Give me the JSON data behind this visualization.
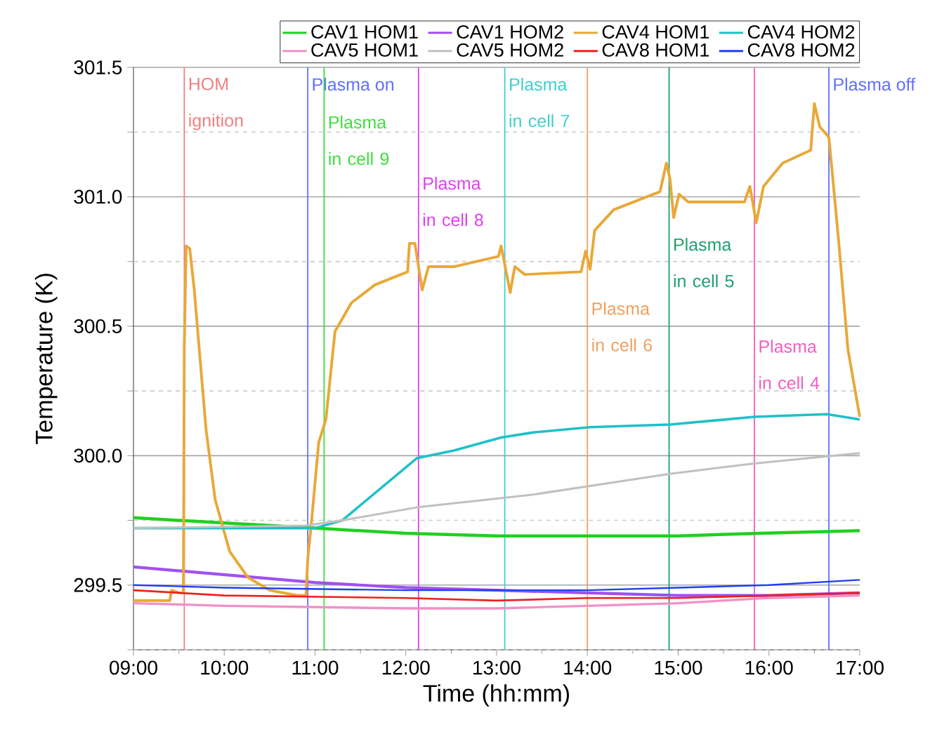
{
  "chart_data": {
    "type": "line",
    "xlabel": "Time (hh:mm)",
    "ylabel": "Temperature (K)",
    "xlim": [
      9,
      17
    ],
    "ylim": [
      299.25,
      301.5
    ],
    "xticks": [
      {
        "value": 9,
        "label": "09:00"
      },
      {
        "value": 10,
        "label": "10:00"
      },
      {
        "value": 11,
        "label": "11:00"
      },
      {
        "value": 12,
        "label": "12:00"
      },
      {
        "value": 13,
        "label": "13:00"
      },
      {
        "value": 14,
        "label": "14:00"
      },
      {
        "value": 15,
        "label": "15:00"
      },
      {
        "value": 16,
        "label": "16:00"
      },
      {
        "value": 17,
        "label": "17:00"
      }
    ],
    "yticks": [
      {
        "value": 299.25,
        "label": null
      },
      299.5,
      {
        "value": 299.75,
        "label": null
      },
      {
        "value": 300,
        "label": "300.0"
      },
      {
        "value": 300.25,
        "label": null
      },
      300.5,
      {
        "value": 300.75,
        "label": null
      },
      {
        "value": 301,
        "label": "301.0"
      },
      {
        "value": 301.25,
        "label": null
      },
      301.5
    ],
    "grid": "y",
    "legend": "top",
    "series": [
      {
        "name": "CAV1 HOM1",
        "color": "#20d020",
        "x": [
          9,
          10,
          11,
          12,
          13,
          14,
          15,
          15.9,
          17
        ],
        "values": [
          299.76,
          299.74,
          299.72,
          299.7,
          299.69,
          299.69,
          299.69,
          299.7,
          299.71
        ]
      },
      {
        "name": "CAV1 HOM2",
        "color": "#a050f0",
        "x": [
          9,
          10,
          11,
          12,
          13,
          14,
          15,
          16,
          17
        ],
        "values": [
          299.57,
          299.54,
          299.51,
          299.49,
          299.48,
          299.47,
          299.46,
          299.46,
          299.47
        ]
      },
      {
        "name": "CAV4 HOM1",
        "color": "#e8a838",
        "x": [
          9,
          9.4,
          9.42,
          9.5,
          9.55,
          9.56,
          9.58,
          9.62,
          9.67,
          9.72,
          9.8,
          9.9,
          10.06,
          10.26,
          10.5,
          10.8,
          10.9,
          10.92,
          10.96,
          11.04,
          11.12,
          11.22,
          11.4,
          11.66,
          12.02,
          12.04,
          12.1,
          12.18,
          12.25,
          12.53,
          13.02,
          13.05,
          13.15,
          13.2,
          13.31,
          13.93,
          13.98,
          14.03,
          14.08,
          14.29,
          14.8,
          14.87,
          14.91,
          14.95,
          15.01,
          15.11,
          15.73,
          15.79,
          15.86,
          15.94,
          16.15,
          16.46,
          16.5,
          16.56,
          16.66,
          16.69,
          16.77,
          16.87,
          17
        ],
        "values": [
          299.44,
          299.44,
          299.48,
          299.47,
          299.47,
          300.42,
          300.81,
          300.8,
          300.64,
          300.43,
          300.1,
          299.83,
          299.63,
          299.53,
          299.48,
          299.46,
          299.46,
          299.6,
          299.74,
          300.05,
          300.14,
          300.48,
          300.59,
          300.66,
          300.71,
          300.82,
          300.82,
          300.64,
          300.73,
          300.73,
          300.77,
          300.81,
          300.63,
          300.73,
          300.7,
          300.71,
          300.79,
          300.72,
          300.87,
          300.95,
          301.02,
          301.13,
          301.07,
          300.92,
          301.01,
          300.98,
          300.98,
          301.04,
          300.9,
          301.04,
          301.13,
          301.18,
          301.36,
          301.27,
          301.23,
          301.12,
          300.82,
          300.41,
          300.15
        ]
      },
      {
        "name": "CAV4 HOM2",
        "color": "#20c0c8",
        "x": [
          9,
          10,
          11,
          11.3,
          12.12,
          12.53,
          13.05,
          13.41,
          14.03,
          14.91,
          15.84,
          16.64,
          17
        ],
        "values": [
          299.72,
          299.72,
          299.72,
          299.75,
          299.99,
          300.02,
          300.07,
          300.09,
          300.11,
          300.12,
          300.15,
          300.16,
          300.14
        ]
      },
      {
        "name": "CAV5 HOM1",
        "color": "#f090c8",
        "x": [
          9,
          10,
          12,
          13,
          14,
          15,
          16,
          17
        ],
        "values": [
          299.43,
          299.42,
          299.41,
          299.41,
          299.42,
          299.43,
          299.45,
          299.46
        ]
      },
      {
        "name": "CAV5 HOM2",
        "color": "#c0c0c0",
        "x": [
          9,
          10.9,
          11.3,
          12.12,
          13.41,
          14.91,
          15.84,
          17
        ],
        "values": [
          299.72,
          299.73,
          299.75,
          299.8,
          299.85,
          299.93,
          299.97,
          300.01
        ]
      },
      {
        "name": "CAV8 HOM1",
        "color": "#f02020",
        "x": [
          9,
          10,
          12,
          13,
          14,
          15,
          16,
          17
        ],
        "values": [
          299.48,
          299.46,
          299.45,
          299.44,
          299.45,
          299.45,
          299.46,
          299.47
        ]
      },
      {
        "name": "CAV8 HOM2",
        "color": "#2040f0",
        "x": [
          9,
          10,
          12,
          14,
          15,
          16,
          17
        ],
        "values": [
          299.5,
          299.49,
          299.48,
          299.48,
          299.49,
          299.5,
          299.52
        ]
      }
    ],
    "ref_lines": [
      {
        "axis": "x",
        "value": 9.56,
        "label": "HOM ignition",
        "color": "#f08080"
      },
      {
        "axis": "x",
        "value": 10.92,
        "label": "Plasma on",
        "color": "#6070ff"
      },
      {
        "axis": "x",
        "value": 11.1,
        "label": "Plasma in cell 9",
        "color": "#40dd40"
      },
      {
        "axis": "x",
        "value": 12.14,
        "label": "Plasma in cell 8",
        "color": "#e040f0"
      },
      {
        "axis": "x",
        "value": 13.09,
        "label": "Plasma in cell 7",
        "color": "#40d0d0"
      },
      {
        "axis": "x",
        "value": 14.0,
        "label": "Plasma in cell 6",
        "color": "#f0a060"
      },
      {
        "axis": "x",
        "value": 14.9,
        "label": "Plasma in cell 5",
        "color": "#20a070"
      },
      {
        "axis": "x",
        "value": 15.84,
        "label": "Plasma in cell 4",
        "color": "#f060c0"
      },
      {
        "axis": "x",
        "value": 16.66,
        "label": "Plasma off",
        "color": "#6070ff"
      }
    ]
  }
}
